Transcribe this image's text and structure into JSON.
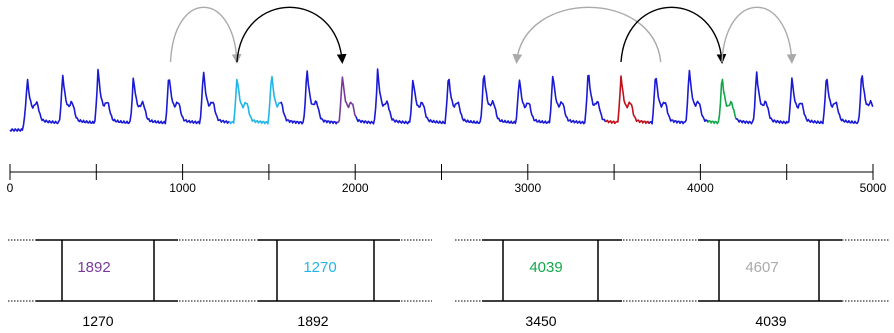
{
  "axis": {
    "min": 0,
    "max": 5000,
    "major_ticks": [
      0,
      1000,
      2000,
      3000,
      4000,
      5000
    ],
    "minor_ticks": [
      500,
      1500,
      2500,
      3500,
      4500
    ],
    "tick_labels": [
      "0",
      "1000",
      "2000",
      "3000",
      "4000",
      "5000"
    ]
  },
  "signal": {
    "base_color": "#1a1ad6",
    "peaks": [
      100,
      305,
      510,
      715,
      920,
      1120,
      1315,
      1515,
      1720,
      1925,
      2130,
      2335,
      2540,
      2745,
      2950,
      3145,
      3350,
      3540,
      3740,
      3935,
      4125,
      4325,
      4530,
      4730,
      4935
    ],
    "highlights": [
      {
        "from": 1270,
        "to": 1560,
        "color": "#22b6e6"
      },
      {
        "from": 1892,
        "to": 2000,
        "color": "#7a3a9a"
      },
      {
        "from": 3450,
        "to": 3700,
        "color": "#c0101a"
      },
      {
        "from": 4039,
        "to": 4200,
        "color": "#12a84a"
      }
    ]
  },
  "arcs": [
    {
      "from": 930,
      "to": 1315,
      "color": "#aaaaaa"
    },
    {
      "from": 1315,
      "to": 1925,
      "color": "#000000"
    },
    {
      "from": 3770,
      "to": 2935,
      "color": "#aaaaaa"
    },
    {
      "from": 3540,
      "to": 4125,
      "color": "#000000"
    },
    {
      "from": 4125,
      "to": 4530,
      "color": "#aaaaaa"
    }
  ],
  "boxes": [
    {
      "label": "1892",
      "color": "#7a3a9a",
      "value": "1270"
    },
    {
      "label": "1270",
      "color": "#22b6e6",
      "value": "1892"
    },
    {
      "label": "4039",
      "color": "#12a84a",
      "value": "3450"
    },
    {
      "label": "4607",
      "color": "#aaaaaa",
      "value": "4039"
    }
  ]
}
